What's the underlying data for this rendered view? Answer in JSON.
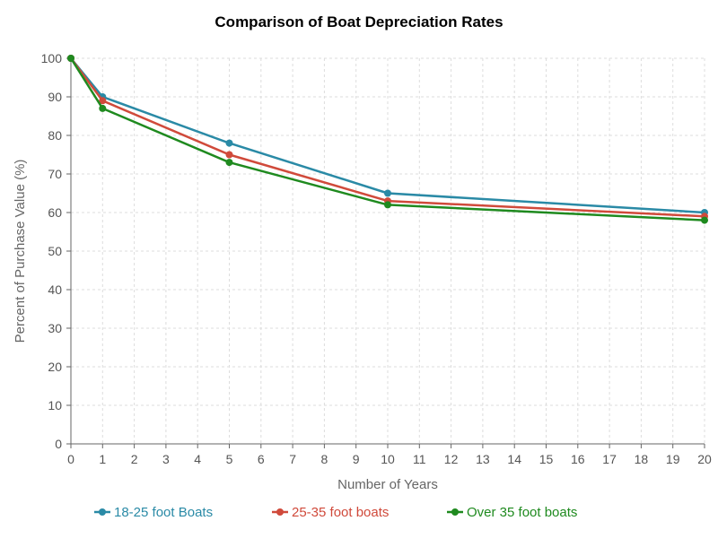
{
  "chart_data": {
    "type": "line",
    "title": "Comparison of Boat Depreciation Rates",
    "xlabel": "Number of Years",
    "ylabel": "Percent of Purchase Value (%)",
    "xlim": [
      0,
      20
    ],
    "ylim": [
      0,
      100
    ],
    "x_ticks": [
      0,
      1,
      2,
      3,
      4,
      5,
      6,
      7,
      8,
      9,
      10,
      11,
      12,
      13,
      14,
      15,
      16,
      17,
      18,
      19,
      20
    ],
    "y_ticks": [
      0,
      10,
      20,
      30,
      40,
      50,
      60,
      70,
      80,
      90,
      100
    ],
    "grid": true,
    "legend_position": "bottom",
    "x": [
      0,
      1,
      5,
      10,
      20
    ],
    "series": [
      {
        "name": "18-25 foot Boats",
        "color": "#2a8aa6",
        "values": [
          100,
          90,
          78,
          65,
          60
        ]
      },
      {
        "name": "25-35 foot boats",
        "color": "#d04a3b",
        "values": [
          100,
          89,
          75,
          63,
          59
        ]
      },
      {
        "name": "Over 35 foot boats",
        "color": "#1f8a1f",
        "values": [
          100,
          87,
          73,
          62,
          58
        ]
      }
    ]
  }
}
